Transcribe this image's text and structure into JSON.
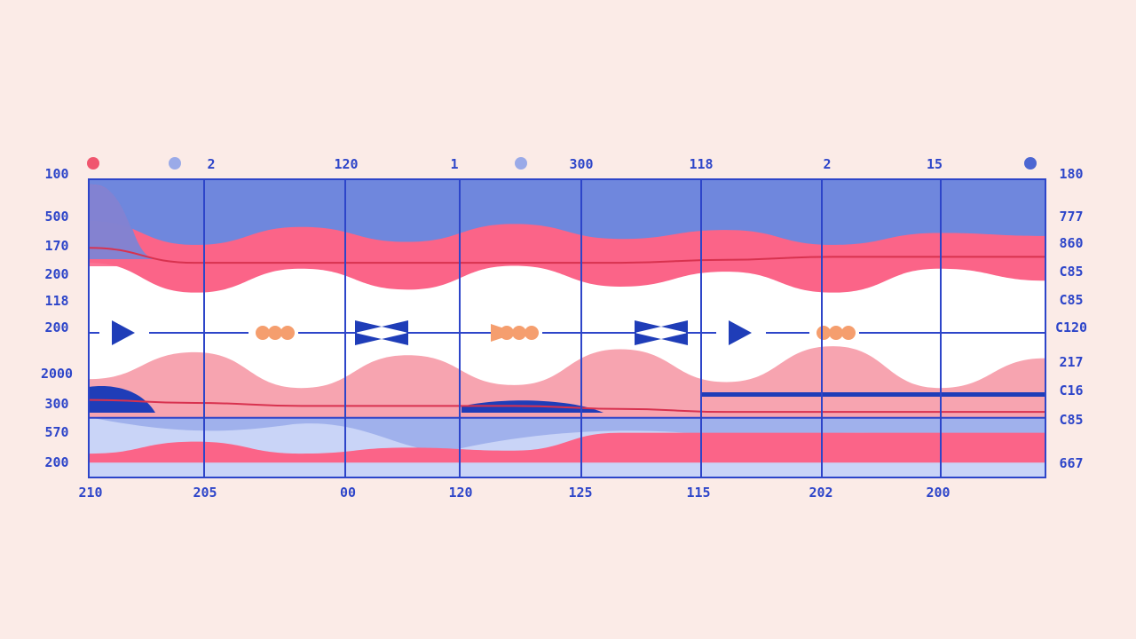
{
  "colors": {
    "background": "#fbebe7",
    "frame": "#2d45c9",
    "blue_dark": "#1f3db8",
    "blue_mid": "#6f87dd",
    "blue_light": "#c9d4f7",
    "pink": "#fb6488",
    "pink_light": "#f7a4b0",
    "red_line": "#d8324f",
    "orange": "#f59e6e"
  },
  "chart_data": {
    "type": "area",
    "title": "",
    "xlabel": "",
    "ylabel": "",
    "legend": [
      {
        "label": "",
        "color": "#f0566f",
        "marker": "dot"
      },
      {
        "label": "2",
        "color": "#9aaae8",
        "marker": "dot"
      },
      {
        "label": "1",
        "color": "#9aaae8",
        "marker": "dot"
      },
      {
        "label": "",
        "color": "#4c66d2",
        "marker": "dot"
      }
    ],
    "top_labels": [
      "120",
      "300",
      "118",
      "2",
      "15"
    ],
    "x_tick_labels": [
      "210",
      "205",
      "00",
      "120",
      "125",
      "115",
      "202",
      "200"
    ],
    "y_left_labels": [
      "100",
      "500",
      "170",
      "200",
      "118",
      "200",
      "2000",
      "300",
      "570",
      "200"
    ],
    "y_right_labels": [
      "180",
      "777",
      "860",
      "C85",
      "C85",
      "C120",
      "217",
      "C16",
      "C85",
      "667"
    ],
    "ylim": [
      0,
      1
    ],
    "columns": 8,
    "series": [
      {
        "name": "band-light",
        "color": "#c9d4f7",
        "values": [
          0.94,
          0.93,
          0.95,
          0.92,
          0.96,
          0.93,
          0.95,
          0.94,
          0.92,
          0.95
        ]
      },
      {
        "name": "band-mid",
        "color": "#6f87dd",
        "values": [
          0.86,
          0.78,
          0.84,
          0.79,
          0.85,
          0.8,
          0.83,
          0.78,
          0.82,
          0.81
        ]
      },
      {
        "name": "band-pink",
        "color": "#fb6488",
        "values": [
          0.72,
          0.62,
          0.7,
          0.63,
          0.71,
          0.64,
          0.69,
          0.62,
          0.7,
          0.66
        ]
      },
      {
        "name": "wave-pink-light",
        "color": "#f7a4b0",
        "values": [
          0.33,
          0.42,
          0.3,
          0.41,
          0.31,
          0.43,
          0.32,
          0.44,
          0.3,
          0.4
        ]
      },
      {
        "name": "floor-pink",
        "color": "#fb6488",
        "values": [
          0.08,
          0.12,
          0.08,
          0.1,
          0.09,
          0.15,
          0.15,
          0.15,
          0.15,
          0.15
        ]
      }
    ],
    "trend_lines": [
      {
        "name": "upper-trend",
        "color": "#d8324f",
        "values": [
          0.77,
          0.72,
          0.72,
          0.72,
          0.72,
          0.72,
          0.73,
          0.74,
          0.74,
          0.74
        ]
      },
      {
        "name": "lower-trend",
        "color": "#d8324f",
        "values": [
          0.26,
          0.25,
          0.24,
          0.24,
          0.24,
          0.23,
          0.22,
          0.22,
          0.22,
          0.22
        ]
      }
    ],
    "markers": [
      "triangle-right",
      "dots",
      "bowtie",
      "triangle-dots",
      "bowtie",
      "triangle-right",
      "dots"
    ]
  }
}
